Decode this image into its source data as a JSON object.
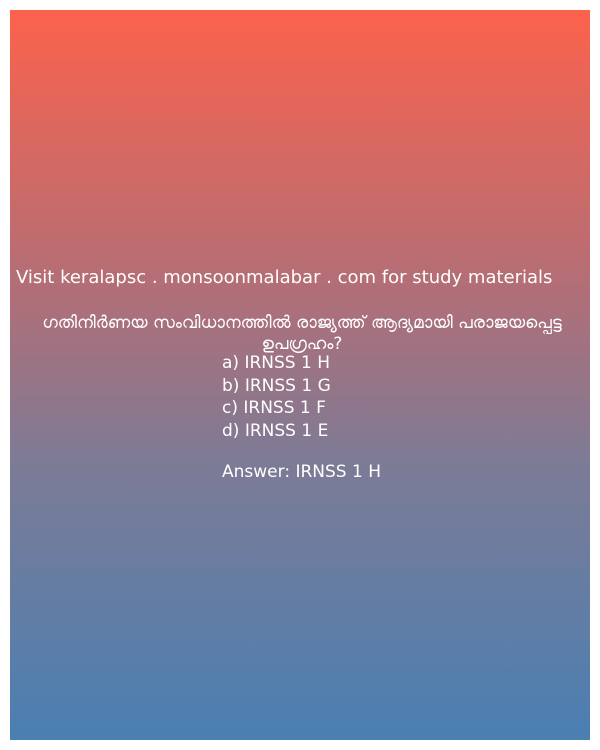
{
  "background": {
    "top_color": "#fc624c",
    "bottom_color": "#4a7fb2",
    "text_color": "#ffffff"
  },
  "watermark": "Visit keralapsc . monsoonmalabar . com for study materials",
  "question": "ഗതിനിർണയ സംവിധാനത്തിൽ രാജ്യത്ത് ആദ്യമായി പരാജയപ്പെട്ട ഉപഗ്രഹം?",
  "options": [
    "a) IRNSS 1 H",
    "b) IRNSS 1 G",
    "c) IRNSS 1 F",
    "d) IRNSS 1 E"
  ],
  "answer": "Answer: IRNSS 1 H"
}
